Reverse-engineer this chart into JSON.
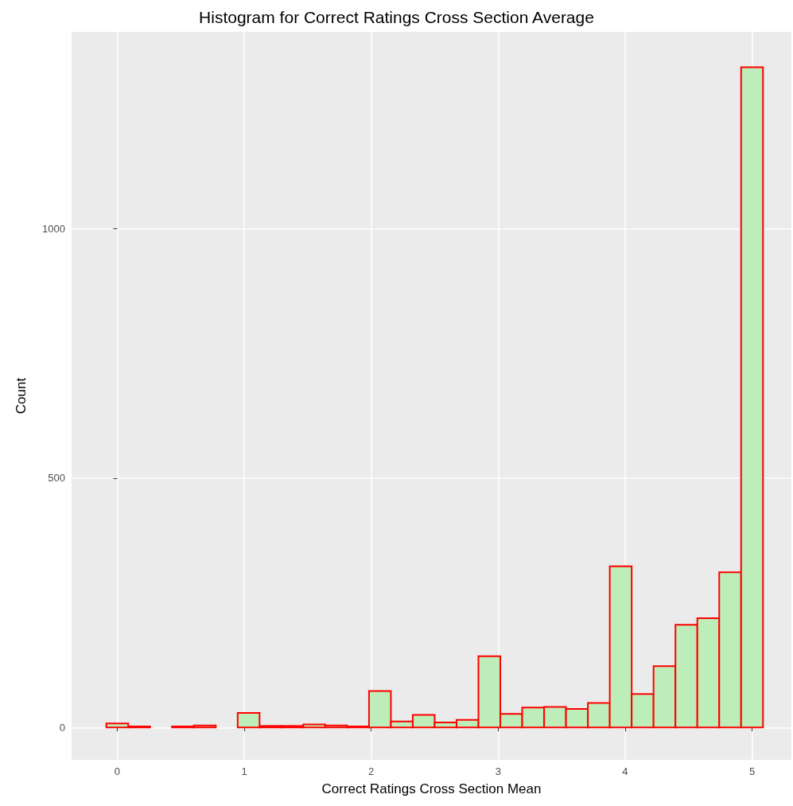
{
  "chart_data": {
    "type": "histogram",
    "title": "Histogram for Correct Ratings Cross Section Average",
    "xlabel": "Correct Ratings Cross Section Mean",
    "ylabel": "Count",
    "bins": [
      -0.0862,
      0.0862,
      0.2586,
      0.431,
      0.6034,
      0.7759,
      0.9483,
      1.1207,
      1.2931,
      1.4655,
      1.6379,
      1.8103,
      1.9828,
      2.1552,
      2.3276,
      2.5,
      2.6724,
      2.8448,
      3.0172,
      3.1897,
      3.3621,
      3.5345,
      3.7069,
      3.8793,
      4.0517,
      4.2241,
      4.3966,
      4.569,
      4.7414,
      4.9138,
      5.0862
    ],
    "values": [
      8,
      2,
      0,
      2,
      4,
      0,
      29,
      3,
      3,
      6,
      4,
      2,
      73,
      12,
      25,
      10,
      15,
      143,
      27,
      40,
      41,
      37,
      49,
      323,
      67,
      123,
      206,
      219,
      311,
      1324
    ],
    "color": "#bdedb9",
    "xlim": [
      -0.36,
      5.31
    ],
    "xticks": [
      0,
      1,
      2,
      3,
      4,
      5
    ],
    "ylim": [
      -65,
      1395
    ],
    "yticks": [
      0,
      500,
      1000
    ],
    "grid": true
  }
}
